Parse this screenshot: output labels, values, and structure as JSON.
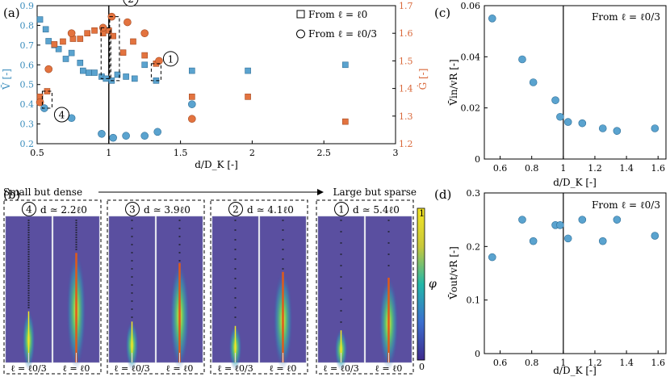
{
  "panels": {
    "a": "(a)",
    "b": "(b)",
    "c": "(c)",
    "d": "(d)"
  },
  "colors": {
    "blue": "#5aa3cf",
    "blue_edge": "#2f6f98",
    "blue_axis": "#3b8dbd",
    "orange": "#e3733f",
    "orange_edge": "#a4481f",
    "axis": "#000000"
  },
  "chart_data": [
    {
      "id": "a",
      "type": "scatter",
      "xlabel": "d/D_K [-]",
      "ylabel_left": "V̄ [-]",
      "ylabel_right": "Ġ [-]",
      "xlim": [
        0.5,
        3
      ],
      "ylim_left": [
        0.2,
        0.9
      ],
      "ylim_right": [
        1.2,
        1.7
      ],
      "xticks": [
        0.5,
        1,
        1.5,
        2,
        2.5,
        3
      ],
      "xtick_labels": [
        "0.5",
        "1",
        "1.5",
        "2",
        "2.5",
        "3"
      ],
      "yticks_left": [
        0.2,
        0.3,
        0.4,
        0.5,
        0.6,
        0.7,
        0.8,
        0.9
      ],
      "yticks_left_labels": [
        "0.2",
        "0.3",
        "0.4",
        "0.5",
        "0.6",
        "0.7",
        "0.8",
        "0.9"
      ],
      "yticks_right": [
        1.2,
        1.3,
        1.4,
        1.5,
        1.6,
        1.7
      ],
      "yticks_right_labels": [
        "1.2",
        "1.3",
        "1.4",
        "1.5",
        "1.6",
        "1.7"
      ],
      "vline": 1,
      "legend": {
        "placement": "top-right",
        "entries": [
          "From ℓ = ℓ0",
          "From ℓ = ℓ0/3"
        ]
      },
      "series": [
        {
          "axis": "left",
          "marker": "square",
          "color": "blue",
          "x": [
            0.52,
            0.56,
            0.58,
            0.62,
            0.65,
            0.7,
            0.74,
            0.8,
            0.82,
            0.86,
            0.9,
            0.95,
            0.98,
            1.02,
            1.06,
            1.12,
            1.18,
            1.25,
            1.33,
            1.58,
            1.97,
            2.65
          ],
          "y": [
            0.83,
            0.78,
            0.72,
            0.7,
            0.68,
            0.63,
            0.66,
            0.61,
            0.57,
            0.56,
            0.56,
            0.54,
            0.53,
            0.52,
            0.55,
            0.54,
            0.53,
            0.6,
            0.52,
            0.57,
            0.57,
            0.6
          ]
        },
        {
          "axis": "left",
          "marker": "circle",
          "color": "blue",
          "x": [
            0.55,
            0.74,
            0.95,
            1.03,
            1.12,
            1.25,
            1.34,
            1.58
          ],
          "y": [
            0.38,
            0.33,
            0.25,
            0.23,
            0.24,
            0.24,
            0.26,
            0.4
          ]
        },
        {
          "axis": "right",
          "marker": "square",
          "color": "orange",
          "x": [
            0.52,
            0.57,
            0.62,
            0.68,
            0.75,
            0.8,
            0.85,
            0.9,
            0.96,
            1.0,
            1.03,
            1.1,
            1.17,
            1.25,
            1.33,
            1.58,
            1.97,
            2.65
          ],
          "y": [
            1.37,
            1.39,
            1.56,
            1.57,
            1.58,
            1.58,
            1.6,
            1.61,
            1.6,
            1.61,
            1.59,
            1.53,
            1.57,
            1.52,
            1.49,
            1.37,
            1.37,
            1.28
          ]
        },
        {
          "axis": "right",
          "marker": "circle",
          "color": "orange",
          "x": [
            0.52,
            0.58,
            0.74,
            0.96,
            1.02,
            1.13,
            1.25,
            1.35,
            1.58
          ],
          "y": [
            1.35,
            1.47,
            1.6,
            1.62,
            1.66,
            1.64,
            1.6,
            1.5,
            1.29
          ]
        }
      ],
      "annotations": [
        {
          "label": "1",
          "x": 1.33,
          "y_left": 0.52,
          "y_right": 1.49
        },
        {
          "label": "2",
          "x": 1.04,
          "y_left": 0.52,
          "y_right": 1.66
        },
        {
          "label": "3",
          "x": 0.98,
          "y_left": 0.53,
          "y_right": 1.62
        },
        {
          "label": "4",
          "x": 0.57,
          "y_left": 0.38,
          "y_right": 1.39
        }
      ]
    },
    {
      "id": "c",
      "type": "scatter",
      "xlabel": "d/D_K [-]",
      "ylabel": "V̄in/vR [-]",
      "xlim": [
        0.5,
        1.65
      ],
      "ylim": [
        0,
        0.06
      ],
      "xticks": [
        0.6,
        0.8,
        1,
        1.2,
        1.4,
        1.6
      ],
      "xtick_labels": [
        "0.6",
        "0.8",
        "1",
        "1.2",
        "1.4",
        "1.6"
      ],
      "yticks": [
        0,
        0.02,
        0.04,
        0.06
      ],
      "ytick_labels": [
        "0",
        "0.02",
        "0.04",
        "0.06"
      ],
      "vline": 1,
      "note": "From ℓ = ℓ0/3",
      "x": [
        0.55,
        0.74,
        0.81,
        0.95,
        0.98,
        1.03,
        1.12,
        1.25,
        1.34,
        1.58
      ],
      "y": [
        0.055,
        0.039,
        0.03,
        0.023,
        0.0165,
        0.0145,
        0.014,
        0.012,
        0.011,
        0.012
      ]
    },
    {
      "id": "d",
      "type": "scatter",
      "xlabel": "d/D_K [-]",
      "ylabel": "V̄out/vR [-]",
      "xlim": [
        0.5,
        1.65
      ],
      "ylim": [
        0,
        0.3
      ],
      "xticks": [
        0.6,
        0.8,
        1,
        1.2,
        1.4,
        1.6
      ],
      "xtick_labels": [
        "0.6",
        "0.8",
        "1",
        "1.2",
        "1.4",
        "1.6"
      ],
      "yticks": [
        0,
        0.1,
        0.2,
        0.3
      ],
      "ytick_labels": [
        "0",
        "0.1",
        "0.2",
        "0.3"
      ],
      "vline": 1,
      "note": "From ℓ = ℓ0/3",
      "x": [
        0.55,
        0.74,
        0.81,
        0.95,
        0.98,
        1.03,
        1.12,
        1.25,
        1.34,
        1.58
      ],
      "y": [
        0.18,
        0.25,
        0.21,
        0.24,
        0.24,
        0.215,
        0.25,
        0.21,
        0.25,
        0.22
      ]
    },
    {
      "id": "b",
      "type": "heatmap",
      "arrow_left": "Small but dense",
      "arrow_right": "Large but sparse",
      "colorbar": {
        "label": "φ",
        "max": "1",
        "min": "0"
      },
      "groups": [
        {
          "badge": "4",
          "title": "d ≃ 2.2ℓ0",
          "left_label": "ℓ = ℓ0/3",
          "right_label": "ℓ = ℓ0",
          "crack": [
            0.35,
            0.75
          ]
        },
        {
          "badge": "3",
          "title": "d ≃ 3.9ℓ0",
          "left_label": "ℓ = ℓ0/3",
          "right_label": "ℓ = ℓ0",
          "crack": [
            0.28,
            0.68
          ]
        },
        {
          "badge": "2",
          "title": "d ≃ 4.1ℓ0",
          "left_label": "ℓ = ℓ0/3",
          "right_label": "ℓ = ℓ0",
          "crack": [
            0.25,
            0.62
          ]
        },
        {
          "badge": "1",
          "title": "d ≃ 5.4ℓ0",
          "left_label": "ℓ = ℓ0/3",
          "right_label": "ℓ = ℓ0",
          "crack": [
            0.22,
            0.58
          ]
        }
      ]
    }
  ]
}
